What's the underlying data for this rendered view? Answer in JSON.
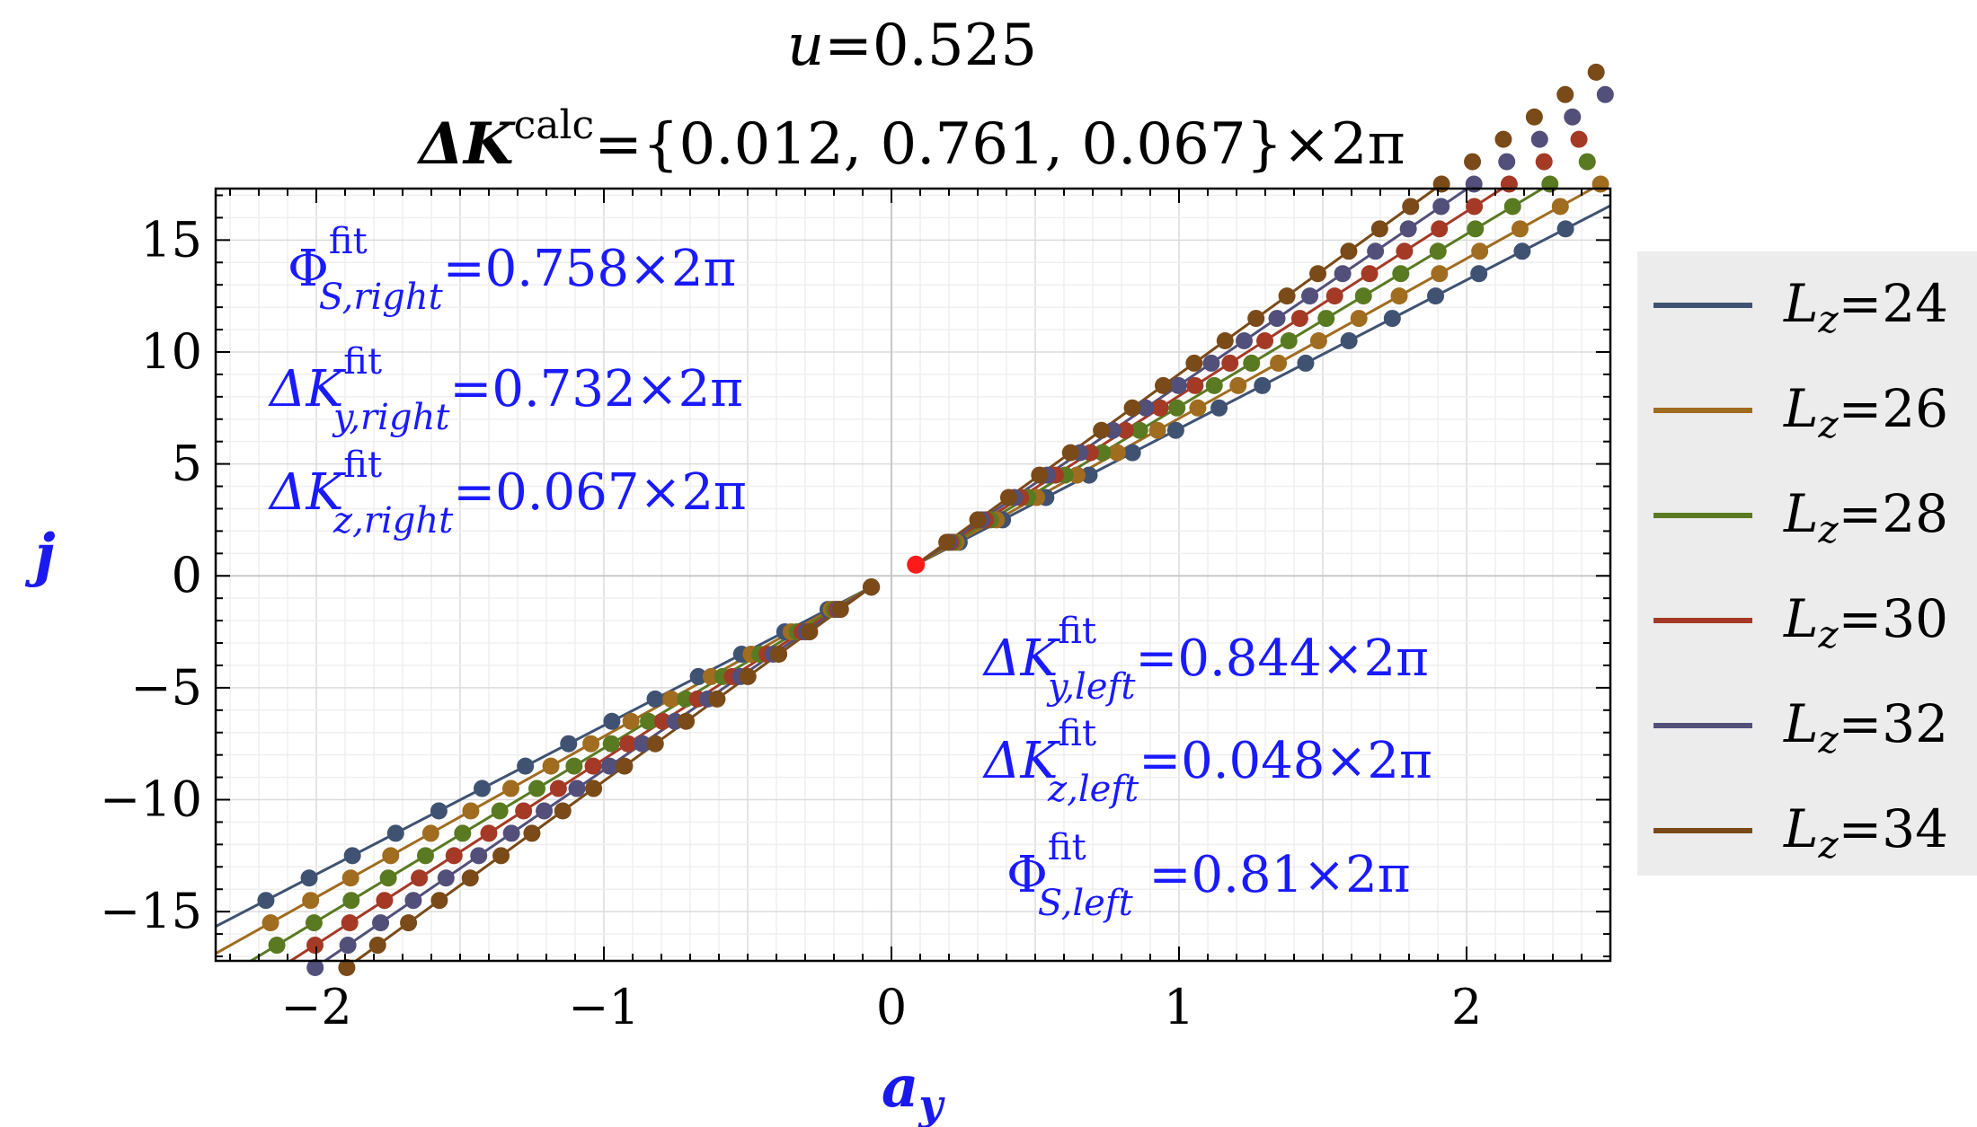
{
  "chart_data": {
    "type": "scatter",
    "title": {
      "line1_var": "u",
      "line1_rest": "=0.525",
      "line2_sym": "ΔK",
      "line2_sup": "calc",
      "line2_rest": "={0.012, 0.761, 0.067}×2π"
    },
    "xlabel": {
      "main": "a",
      "sub": "y"
    },
    "ylabel": "j",
    "xlim": [
      -2.35,
      2.5
    ],
    "ylim": [
      -17.2,
      17.3
    ],
    "xticks": [
      {
        "v": -2,
        "label": "−2"
      },
      {
        "v": -1,
        "label": "−1"
      },
      {
        "v": 0,
        "label": "0"
      },
      {
        "v": 1,
        "label": "1"
      },
      {
        "v": 2,
        "label": "2"
      }
    ],
    "yticks": [
      {
        "v": 15,
        "label": "15"
      },
      {
        "v": 10,
        "label": "10"
      },
      {
        "v": 5,
        "label": "5"
      },
      {
        "v": 0,
        "label": "0"
      },
      {
        "v": -5,
        "label": "−5"
      },
      {
        "v": -10,
        "label": "−10"
      },
      {
        "v": -15,
        "label": "−15"
      }
    ],
    "grid": true,
    "legend_position": "right",
    "series": [
      {
        "name": "L_z=24",
        "color": "#3f5272",
        "slope_right": 6.64,
        "slope_left": 6.65,
        "points_right": 16,
        "points_left": 15
      },
      {
        "name": "L_z=26",
        "color": "#a06c1f",
        "slope_right": 7.14,
        "slope_left": 7.18,
        "points_right": 18,
        "points_left": 16
      },
      {
        "name": "L_z=28",
        "color": "#5a7a22",
        "slope_right": 7.71,
        "slope_left": 7.74,
        "points_right": 19,
        "points_left": 17
      },
      {
        "name": "L_z=30",
        "color": "#a43a26",
        "slope_right": 8.24,
        "slope_left": 8.27,
        "points_right": 20,
        "points_left": 17
      },
      {
        "name": "L_z=32",
        "color": "#52507a",
        "slope_right": 8.76,
        "slope_left": 8.79,
        "points_right": 22,
        "points_left": 18
      },
      {
        "name": "L_z=34",
        "color": "#7a4a18",
        "slope_right": 9.3,
        "slope_left": 9.32,
        "points_right": 23,
        "points_left": 18
      }
    ],
    "highlight_point": {
      "x": 0.085,
      "y": 0.5,
      "color": "#ff1a1a"
    },
    "annotations": {
      "phi_right": {
        "sym": "Φ",
        "sup": "fit",
        "sub": "S,right",
        "value": "=0.758×2π"
      },
      "dky_right": {
        "sym": "ΔK",
        "sup": "fit",
        "sub": "y,right",
        "value": "=0.732×2π"
      },
      "dkz_right": {
        "sym": "ΔK",
        "sup": "fit",
        "sub": "z,right",
        "value": "=0.067×2π"
      },
      "dky_left": {
        "sym": "ΔK",
        "sup": "fit",
        "sub": "y,left",
        "value": "=0.844×2π"
      },
      "dkz_left": {
        "sym": "ΔK",
        "sup": "fit",
        "sub": "z,left",
        "value": "=0.048×2π"
      },
      "phi_left": {
        "sym": "Φ",
        "sup": "fit",
        "sub": "S,left",
        "value": " =0.81×2π"
      }
    },
    "annotation_color": "#1a1aff",
    "axis_label_color": "#1a1aee"
  }
}
